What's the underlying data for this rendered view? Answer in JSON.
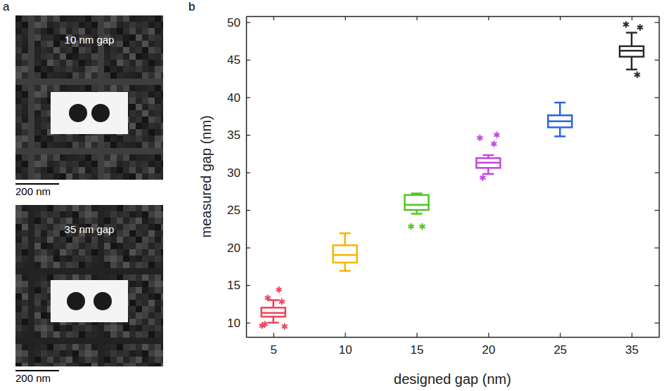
{
  "panel_labels": [
    "a",
    "b"
  ],
  "panel_a": {
    "images": [
      {
        "caption": "10 nm gap",
        "scale_bar": "200 nm"
      },
      {
        "caption": "35 nm gap",
        "scale_bar": "200 nm"
      }
    ]
  },
  "chart_data": {
    "type": "box",
    "x_label": "designed gap (nm)",
    "y_label": "measured gap (nm)",
    "categories": [
      "5",
      "10",
      "15",
      "20",
      "25",
      "35"
    ],
    "colors": [
      "#f0435a",
      "#f7b500",
      "#52c71c",
      "#c245e0",
      "#2a63e5",
      "#2b2b2b"
    ],
    "marker": "asterisk",
    "ylim": [
      8.1,
      50.8
    ],
    "yticks": [
      10,
      15,
      20,
      25,
      30,
      35,
      40,
      45,
      50
    ],
    "boxes": [
      {
        "min": 10.0,
        "q1": 10.8,
        "median": 11.3,
        "q3": 12.0,
        "max": 13.0,
        "outliers": [
          14.4,
          13.3,
          12.8,
          9.8,
          9.5,
          9.6
        ]
      },
      {
        "min": 16.9,
        "q1": 18.0,
        "median": 19.0,
        "q3": 20.3,
        "max": 21.9,
        "outliers": []
      },
      {
        "min": 24.5,
        "q1": 25.0,
        "median": 25.7,
        "q3": 27.0,
        "max": 27.2,
        "outliers": [
          22.8,
          22.8
        ]
      },
      {
        "min": 29.8,
        "q1": 30.6,
        "median": 31.3,
        "q3": 31.9,
        "max": 32.3,
        "outliers": [
          33.8,
          29.3,
          35.0,
          34.6
        ]
      },
      {
        "min": 34.8,
        "q1": 36.0,
        "median": 36.8,
        "q3": 37.6,
        "max": 39.3,
        "outliers": []
      },
      {
        "min": 43.7,
        "q1": 45.4,
        "median": 46.2,
        "q3": 46.8,
        "max": 48.6,
        "outliers": [
          43.0,
          49.7,
          49.3
        ]
      }
    ]
  }
}
